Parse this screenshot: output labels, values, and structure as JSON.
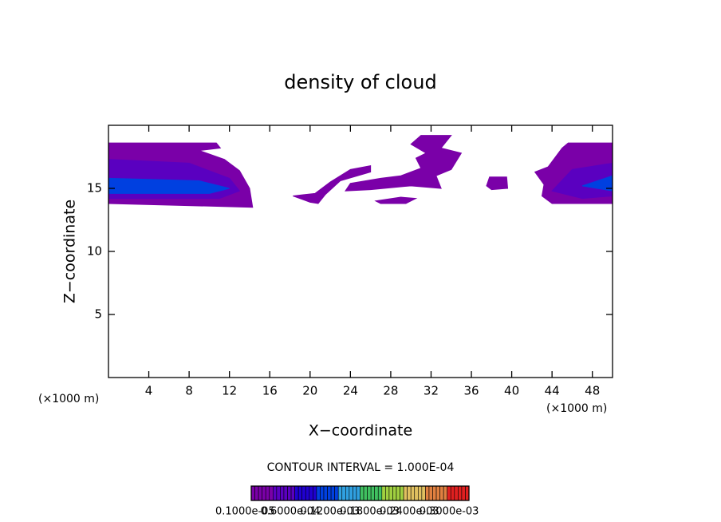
{
  "chart_data": {
    "type": "contour",
    "title": "density of cloud",
    "x_label": "X−coordinate",
    "y_label": "Z−coordinate",
    "x_unit": "(×1000 m)",
    "x_unit_right": "(×1000 m)",
    "contour_interval": "CONTOUR INTERVAL = 1.000E-04",
    "xlim": [
      0,
      50
    ],
    "ylim": [
      0,
      20
    ],
    "xticks": [
      4,
      8,
      12,
      16,
      20,
      24,
      28,
      32,
      36,
      40,
      44,
      48
    ],
    "yticks": [
      5,
      10,
      15
    ],
    "colormap": [
      "#7a00a8",
      "#5a00c0",
      "#2000d0",
      "#0040e0",
      "#30a0e0",
      "#40c060",
      "#a0d040",
      "#e0c060",
      "#e08040",
      "#e02020"
    ],
    "clim": [
      1e-06,
      0.00033
    ],
    "colorbar_ticks": [
      {
        "value": 1e-06,
        "label": "0.1000e-05"
      },
      {
        "value": 6e-05,
        "label": "0.6000e-04"
      },
      {
        "value": 0.00012,
        "label": "0.1200e-03"
      },
      {
        "value": 0.00018,
        "label": "0.1800e-03"
      },
      {
        "value": 0.00024,
        "label": "0.2400e-03"
      },
      {
        "value": 0.0003,
        "label": "0.3000e-03"
      }
    ],
    "regions": [
      {
        "value": 1e-06,
        "points": [
          [
            0,
            18.6
          ],
          [
            10.7,
            18.6
          ],
          [
            11.1,
            18.2
          ],
          [
            9,
            18.0
          ],
          [
            11.5,
            17.3
          ],
          [
            13,
            16.4
          ],
          [
            14,
            15
          ],
          [
            14.3,
            13.5
          ],
          [
            0,
            13.8
          ]
        ]
      },
      {
        "value": 6e-05,
        "points": [
          [
            0,
            17.3
          ],
          [
            8,
            17
          ],
          [
            12,
            15.8
          ],
          [
            13,
            14.8
          ],
          [
            11,
            14.2
          ],
          [
            0,
            14.2
          ]
        ]
      },
      {
        "value": 0.00012,
        "points": [
          [
            0,
            15.8
          ],
          [
            9,
            15.6
          ],
          [
            12,
            15
          ],
          [
            10,
            14.6
          ],
          [
            0,
            14.6
          ]
        ]
      },
      {
        "value": 1e-06,
        "points": [
          [
            18.3,
            14.4
          ],
          [
            20.5,
            14.6
          ],
          [
            22,
            15.5
          ],
          [
            24,
            16.5
          ],
          [
            26,
            16.8
          ],
          [
            26,
            16.3
          ],
          [
            23,
            15.6
          ],
          [
            21.5,
            14.5
          ],
          [
            20.8,
            13.8
          ],
          [
            20,
            13.9
          ]
        ]
      },
      {
        "value": 1e-06,
        "points": [
          [
            23.5,
            14.8
          ],
          [
            24,
            15.4
          ],
          [
            27,
            15.8
          ],
          [
            29,
            16
          ],
          [
            31,
            16.6
          ],
          [
            30.5,
            17.4
          ],
          [
            31.5,
            17.8
          ],
          [
            30,
            18.5
          ],
          [
            31,
            19.2
          ],
          [
            34,
            19.2
          ],
          [
            33,
            18.2
          ],
          [
            35,
            17.8
          ],
          [
            34,
            16.5
          ],
          [
            32.5,
            16
          ],
          [
            33,
            15
          ],
          [
            30,
            15.2
          ],
          [
            26,
            14.9
          ]
        ]
      },
      {
        "value": 1e-06,
        "points": [
          [
            26.5,
            14
          ],
          [
            29,
            14.3
          ],
          [
            30.5,
            14.2
          ],
          [
            29.5,
            13.8
          ],
          [
            27,
            13.8
          ]
        ]
      },
      {
        "value": 1e-06,
        "points": [
          [
            37.5,
            15.2
          ],
          [
            37.8,
            15.9
          ],
          [
            39.5,
            15.9
          ],
          [
            39.6,
            15.0
          ],
          [
            38,
            14.9
          ]
        ]
      },
      {
        "value": 1e-06,
        "points": [
          [
            44,
            13.8
          ],
          [
            43,
            14.4
          ],
          [
            43.2,
            15.3
          ],
          [
            42.3,
            16.3
          ],
          [
            43.6,
            16.7
          ],
          [
            45,
            18.2
          ],
          [
            45.6,
            18.6
          ],
          [
            50,
            18.6
          ],
          [
            50,
            13.8
          ]
        ]
      },
      {
        "value": 6e-05,
        "points": [
          [
            44,
            14.8
          ],
          [
            46,
            16.5
          ],
          [
            50,
            17
          ],
          [
            50,
            14.4
          ],
          [
            47,
            14.2
          ]
        ]
      },
      {
        "value": 0.00012,
        "points": [
          [
            47,
            15.2
          ],
          [
            50,
            16
          ],
          [
            50,
            14.8
          ]
        ]
      }
    ]
  }
}
